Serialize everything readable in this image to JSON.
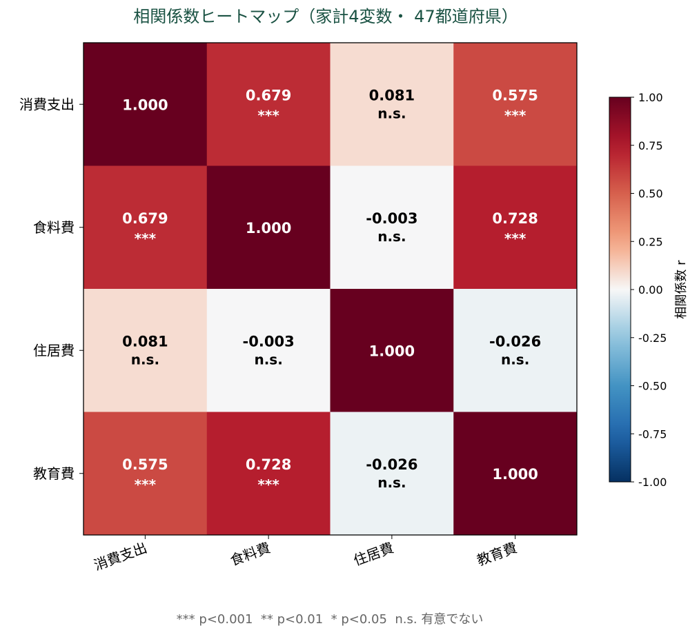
{
  "chart_data": {
    "type": "heatmap",
    "title": "相関係数ヒートマップ（家計4変数・ 47都道府県）",
    "row_labels": [
      "消費支出",
      "食料費",
      "住居費",
      "教育費"
    ],
    "col_labels": [
      "消費支出",
      "食料費",
      "住居費",
      "教育費"
    ],
    "values": [
      [
        1.0,
        0.679,
        0.081,
        0.575
      ],
      [
        0.679,
        1.0,
        -0.003,
        0.728
      ],
      [
        0.081,
        -0.003,
        1.0,
        -0.026
      ],
      [
        0.575,
        0.728,
        -0.026,
        1.0
      ]
    ],
    "value_labels": [
      [
        "1.000",
        "0.679",
        "0.081",
        "0.575"
      ],
      [
        "0.679",
        "1.000",
        "-0.003",
        "0.728"
      ],
      [
        "0.081",
        "-0.003",
        "1.000",
        "-0.026"
      ],
      [
        "0.575",
        "0.728",
        "-0.026",
        "1.000"
      ]
    ],
    "significance": [
      [
        "",
        "***",
        "n.s.",
        "***"
      ],
      [
        "***",
        "",
        "n.s.",
        "***"
      ],
      [
        "n.s.",
        "n.s.",
        "",
        "n.s."
      ],
      [
        "***",
        "***",
        "n.s.",
        ""
      ]
    ],
    "colorscale": "RdBu_r",
    "vmin": -1.0,
    "vmax": 1.0,
    "colorbar_label": "相関係数 r",
    "colorbar_ticks": [
      -1.0,
      -0.75,
      -0.5,
      -0.25,
      0.0,
      0.25,
      0.5,
      0.75,
      1.0
    ],
    "colorbar_tick_labels": [
      "-1.00",
      "-0.75",
      "-0.50",
      "-0.25",
      "0.00",
      "0.25",
      "0.50",
      "0.75",
      "1.00"
    ],
    "footnote": "*** p<0.001  ** p<0.01  * p<0.05  n.s. 有意でない"
  },
  "colors": {
    "title": "#1a5243",
    "footnote": "#666666",
    "frame": "#000000"
  }
}
